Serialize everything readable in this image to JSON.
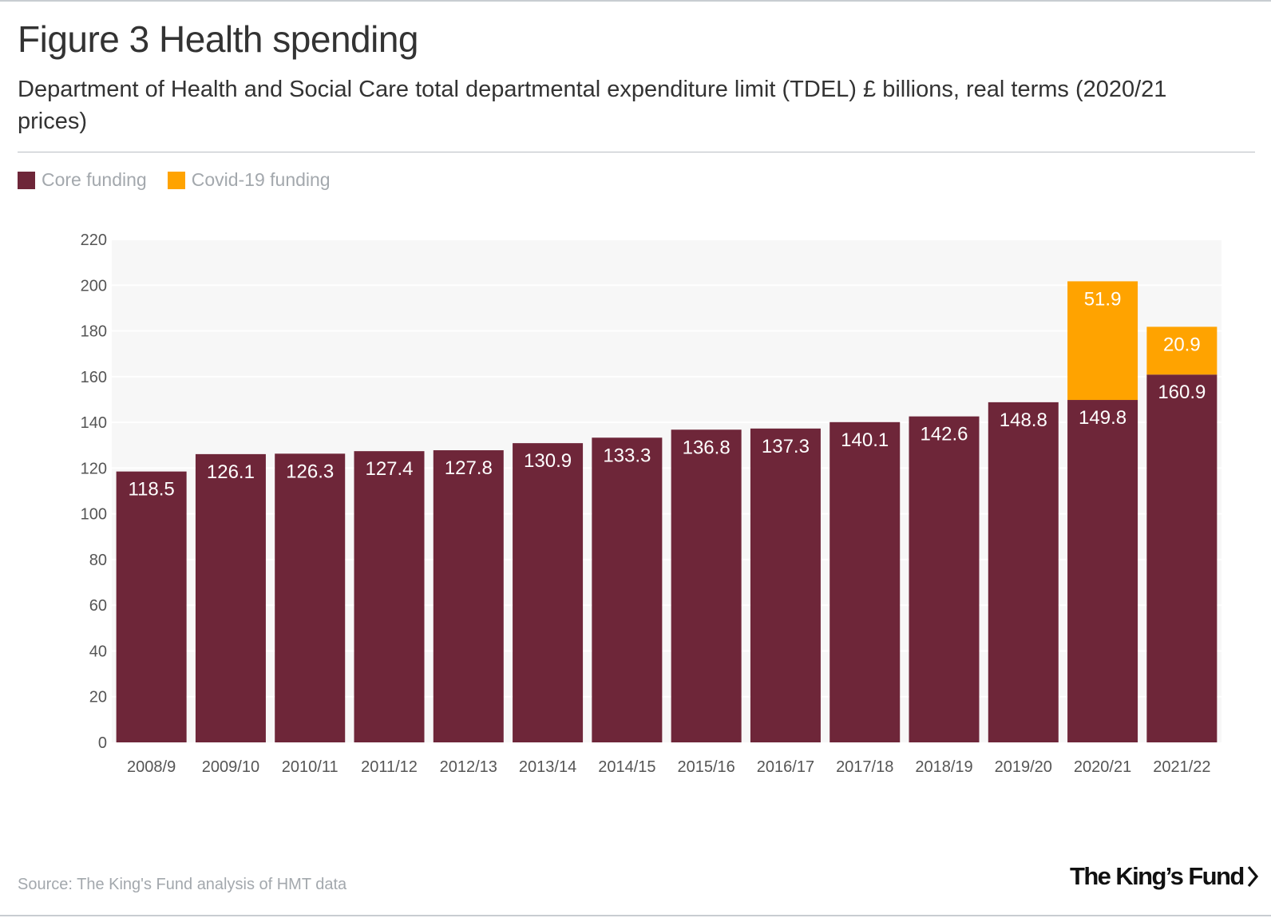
{
  "title": "Figure 3 Health spending",
  "subtitle": "Department of Health and Social Care total departmental expenditure limit (TDEL) £ billions, real terms (2020/21 prices)",
  "source": "Source: The King's Fund analysis of HMT data",
  "logo": {
    "text": "The King’s Fund"
  },
  "colors": {
    "core": "#6e2639",
    "covid": "#ffa300",
    "plot_bg": "#f7f7f7",
    "grid": "#ffffff",
    "axis_text": "#555555"
  },
  "chart_data": {
    "type": "bar",
    "stacked": true,
    "title": "Figure 3 Health spending",
    "xlabel": "",
    "ylabel": "",
    "ylim": [
      0,
      220
    ],
    "yticks": [
      0,
      20,
      40,
      60,
      80,
      100,
      120,
      140,
      160,
      180,
      200,
      220
    ],
    "legend_position": "top-left",
    "categories": [
      "2008/9",
      "2009/10",
      "2010/11",
      "2011/12",
      "2012/13",
      "2013/14",
      "2014/15",
      "2015/16",
      "2016/17",
      "2017/18",
      "2018/19",
      "2019/20",
      "2020/21",
      "2021/22"
    ],
    "series": [
      {
        "name": "Core funding",
        "color": "#6e2639",
        "values": [
          118.5,
          126.1,
          126.3,
          127.4,
          127.8,
          130.9,
          133.3,
          136.8,
          137.3,
          140.1,
          142.6,
          148.8,
          149.8,
          160.9
        ]
      },
      {
        "name": "Covid-19 funding",
        "color": "#ffa300",
        "values": [
          0,
          0,
          0,
          0,
          0,
          0,
          0,
          0,
          0,
          0,
          0,
          0,
          51.9,
          20.9
        ]
      }
    ]
  }
}
